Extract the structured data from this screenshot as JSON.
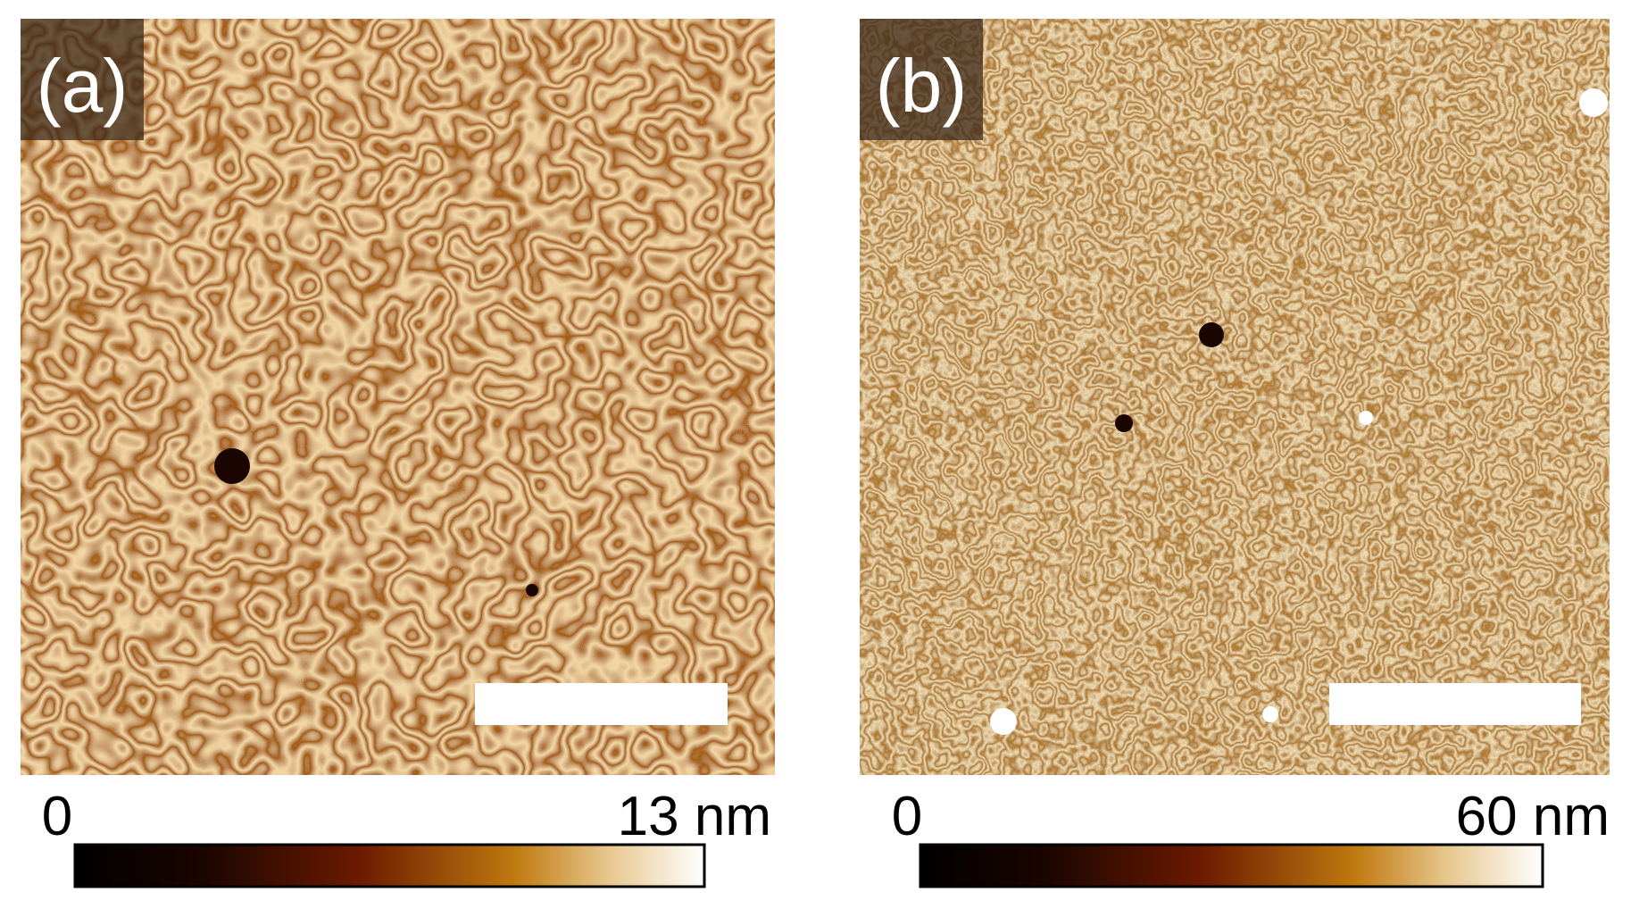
{
  "panels": [
    {
      "label": "(a)",
      "colorbar": {
        "min_label": "0",
        "max_label": "13 nm"
      }
    },
    {
      "label": "(b)",
      "colorbar": {
        "min_label": "0",
        "max_label": "60 nm"
      }
    }
  ]
}
